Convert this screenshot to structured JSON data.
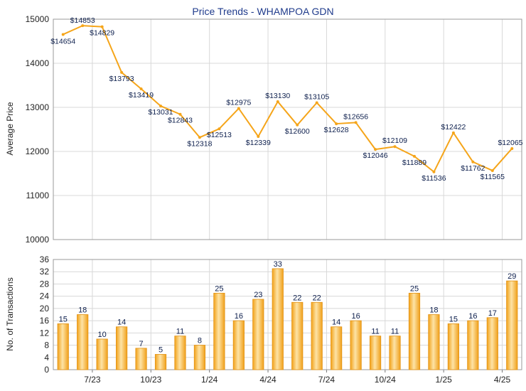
{
  "chart_data": [
    {
      "type": "line",
      "title": "Price Trends - WHAMPOA GDN",
      "ylabel": "Average Price",
      "ylim": [
        10000,
        15000
      ],
      "yticks": [
        "10000",
        "11000",
        "12000",
        "13000",
        "14000",
        "15000"
      ],
      "grid": true,
      "color": "#f5a51a",
      "series": [
        {
          "values": [
            14654,
            14853,
            14829,
            13793,
            13419,
            13031,
            12843,
            12318,
            12513,
            12975,
            12339,
            13130,
            12600,
            13105,
            12628,
            12656,
            12046,
            12109,
            11889,
            11536,
            12422,
            11762,
            11565,
            12065
          ],
          "labels": [
            "$14654",
            "$14853",
            "$14829",
            "$13793",
            "$13419",
            "$13031",
            "$12843",
            "$12318",
            "$12513",
            "$12975",
            "$12339",
            "$13130",
            "$12600",
            "$13105",
            "$12628",
            "$12656",
            "$12046",
            "$12109",
            "$11889",
            "$11536",
            "$12422",
            "$11762",
            "$11565",
            "$12065"
          ]
        }
      ]
    },
    {
      "type": "bar",
      "ylabel": "No. of Transactions",
      "ylim": [
        0,
        36
      ],
      "yticks": [
        "0",
        "4",
        "8",
        "12",
        "16",
        "20",
        "24",
        "28",
        "32",
        "36"
      ],
      "grid": true,
      "color": "#f5a51a",
      "x_tick_labels": [
        {
          "index": 1.5,
          "label": "7/23"
        },
        {
          "index": 4.5,
          "label": "10/23"
        },
        {
          "index": 7.5,
          "label": "1/24"
        },
        {
          "index": 10.5,
          "label": "4/24"
        },
        {
          "index": 13.5,
          "label": "7/24"
        },
        {
          "index": 16.5,
          "label": "10/24"
        },
        {
          "index": 19.5,
          "label": "1/25"
        },
        {
          "index": 22.5,
          "label": "4/25"
        }
      ],
      "values": [
        15,
        18,
        10,
        14,
        7,
        5,
        11,
        8,
        25,
        16,
        23,
        33,
        22,
        22,
        14,
        16,
        11,
        11,
        25,
        18,
        15,
        16,
        17,
        29
      ]
    }
  ]
}
